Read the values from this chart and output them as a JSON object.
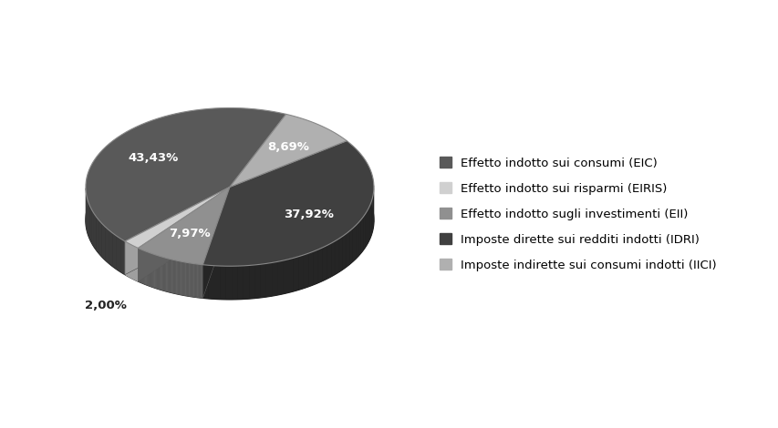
{
  "labels": [
    "Effetto indotto sui consumi (EIC)",
    "Effetto indotto sui risparmi (EIRIS)",
    "Effetto indotto sugli investimenti (EII)",
    "Imposte dirette sui redditi indotti (IDRI)",
    "Imposte indirette sui consumi indotti (IICI)"
  ],
  "values": [
    43.43,
    2.0,
    7.97,
    37.92,
    8.69
  ],
  "pct_labels": [
    "43,43%",
    "2,00%",
    "7,97%",
    "37,92%",
    "8,69%"
  ],
  "colors": [
    "#595959",
    "#d0d0d0",
    "#909090",
    "#404040",
    "#b0b0b0"
  ],
  "dark_colors": [
    "#3a3a3a",
    "#a0a0a0",
    "#606060",
    "#252525",
    "#808080"
  ],
  "background_color": "#ffffff",
  "startangle": 67,
  "legend_fontsize": 9.5,
  "pct_fontsize": 9.5,
  "figsize": [
    8.54,
    4.7
  ],
  "dpi": 100
}
